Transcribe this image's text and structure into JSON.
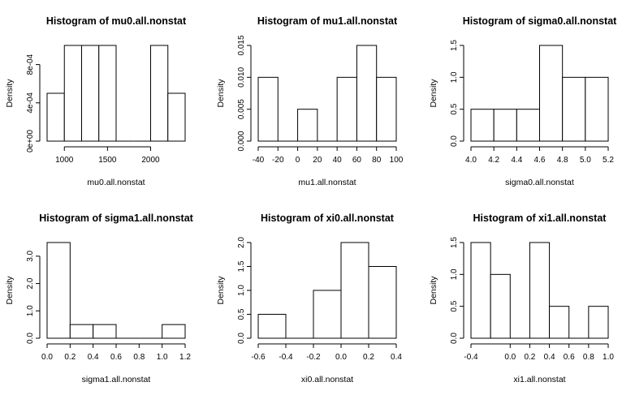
{
  "chart_data": [
    {
      "type": "bar",
      "title": "Histogram of mu0.all.nonstat",
      "xlabel": "mu0.all.nonstat",
      "ylabel": "Density",
      "bins": [
        [
          800,
          1000
        ],
        [
          1000,
          1200
        ],
        [
          1200,
          1400
        ],
        [
          1400,
          1600
        ],
        [
          1600,
          1800
        ],
        [
          1800,
          2000
        ],
        [
          2000,
          2200
        ],
        [
          2200,
          2400
        ]
      ],
      "values": [
        0.0005,
        0.001,
        0.001,
        0.001,
        0,
        0,
        0.001,
        0.0005
      ],
      "xticks": [
        1000,
        1500,
        2000
      ],
      "xtick_labels": [
        "1000",
        "1500",
        "2000"
      ],
      "yticks": [
        0,
        0.0004,
        0.0008
      ],
      "ytick_labels": [
        "0e+00",
        "4e-04",
        "8e-04"
      ],
      "xlim": [
        800,
        2400
      ],
      "ylim": [
        0,
        0.001
      ]
    },
    {
      "type": "bar",
      "title": "Histogram of mu1.all.nonstat",
      "xlabel": "mu1.all.nonstat",
      "ylabel": "Density",
      "bins": [
        [
          -40,
          -20
        ],
        [
          -20,
          0
        ],
        [
          0,
          20
        ],
        [
          20,
          40
        ],
        [
          40,
          60
        ],
        [
          60,
          80
        ],
        [
          80,
          100
        ]
      ],
      "values": [
        0.01,
        0,
        0.005,
        0,
        0.01,
        0.015,
        0.01
      ],
      "xticks": [
        -40,
        -20,
        0,
        20,
        40,
        60,
        80,
        100
      ],
      "xtick_labels": [
        "-40",
        "-20",
        "0",
        "20",
        "40",
        "60",
        "80",
        "100"
      ],
      "yticks": [
        0,
        0.005,
        0.01,
        0.015
      ],
      "ytick_labels": [
        "0.000",
        "0.005",
        "0.010",
        "0.015"
      ],
      "xlim": [
        -40,
        100
      ],
      "ylim": [
        0,
        0.015
      ]
    },
    {
      "type": "bar",
      "title": "Histogram of sigma0.all.nonstat",
      "xlabel": "sigma0.all.nonstat",
      "ylabel": "Density",
      "bins": [
        [
          4.0,
          4.2
        ],
        [
          4.2,
          4.4
        ],
        [
          4.4,
          4.6
        ],
        [
          4.6,
          4.8
        ],
        [
          4.8,
          5.0
        ],
        [
          5.0,
          5.2
        ]
      ],
      "values": [
        0.5,
        0.5,
        0.5,
        1.5,
        1.0,
        1.0
      ],
      "xticks": [
        4.0,
        4.2,
        4.4,
        4.6,
        4.8,
        5.0,
        5.2
      ],
      "xtick_labels": [
        "4.0",
        "4.2",
        "4.4",
        "4.6",
        "4.8",
        "5.0",
        "5.2"
      ],
      "yticks": [
        0,
        0.5,
        1.0,
        1.5
      ],
      "ytick_labels": [
        "0.0",
        "0.5",
        "1.0",
        "1.5"
      ],
      "xlim": [
        4.0,
        5.2
      ],
      "ylim": [
        0,
        1.5
      ]
    },
    {
      "type": "bar",
      "title": "Histogram of sigma1.all.nonstat",
      "xlabel": "sigma1.all.nonstat",
      "ylabel": "Density",
      "bins": [
        [
          0.0,
          0.2
        ],
        [
          0.2,
          0.4
        ],
        [
          0.4,
          0.6
        ],
        [
          0.6,
          0.8
        ],
        [
          0.8,
          1.0
        ],
        [
          1.0,
          1.2
        ]
      ],
      "values": [
        3.5,
        0.5,
        0.5,
        0,
        0,
        0.5
      ],
      "xticks": [
        0.0,
        0.2,
        0.4,
        0.6,
        0.8,
        1.0,
        1.2
      ],
      "xtick_labels": [
        "0.0",
        "0.2",
        "0.4",
        "0.6",
        "0.8",
        "1.0",
        "1.2"
      ],
      "yticks": [
        0,
        1.0,
        2.0,
        3.0
      ],
      "ytick_labels": [
        "0.0",
        "1.0",
        "2.0",
        "3.0"
      ],
      "xlim": [
        0,
        1.2
      ],
      "ylim": [
        0,
        3.5
      ]
    },
    {
      "type": "bar",
      "title": "Histogram of xi0.all.nonstat",
      "xlabel": "xi0.all.nonstat",
      "ylabel": "Density",
      "bins": [
        [
          -0.6,
          -0.4
        ],
        [
          -0.4,
          -0.2
        ],
        [
          -0.2,
          0.0
        ],
        [
          0.0,
          0.2
        ],
        [
          0.2,
          0.4
        ]
      ],
      "values": [
        0.5,
        0,
        1.0,
        2.0,
        1.5
      ],
      "xticks": [
        -0.6,
        -0.4,
        -0.2,
        0.0,
        0.2,
        0.4
      ],
      "xtick_labels": [
        "-0.6",
        "-0.4",
        "-0.2",
        "0.0",
        "0.2",
        "0.4"
      ],
      "yticks": [
        0,
        0.5,
        1.0,
        1.5,
        2.0
      ],
      "ytick_labels": [
        "0.0",
        "0.5",
        "1.0",
        "1.5",
        "2.0"
      ],
      "xlim": [
        -0.6,
        0.4
      ],
      "ylim": [
        0,
        2.0
      ]
    },
    {
      "type": "bar",
      "title": "Histogram of xi1.all.nonstat",
      "xlabel": "xi1.all.nonstat",
      "ylabel": "Density",
      "bins": [
        [
          -0.4,
          -0.2
        ],
        [
          -0.2,
          0.0
        ],
        [
          0.0,
          0.2
        ],
        [
          0.2,
          0.4
        ],
        [
          0.4,
          0.6
        ],
        [
          0.6,
          0.8
        ],
        [
          0.8,
          1.0
        ]
      ],
      "values": [
        1.5,
        1.0,
        0,
        1.5,
        0.5,
        0,
        0.5
      ],
      "xticks": [
        -0.4,
        0.0,
        0.2,
        0.4,
        0.6,
        0.8,
        1.0
      ],
      "xtick_labels": [
        "-0.4",
        "0.0",
        "0.2",
        "0.4",
        "0.6",
        "0.8",
        "1.0"
      ],
      "yticks": [
        0,
        0.5,
        1.0,
        1.5
      ],
      "ytick_labels": [
        "0.0",
        "0.5",
        "1.0",
        "1.5"
      ],
      "xlim": [
        -0.4,
        1.0
      ],
      "ylim": [
        0,
        1.5
      ]
    }
  ]
}
